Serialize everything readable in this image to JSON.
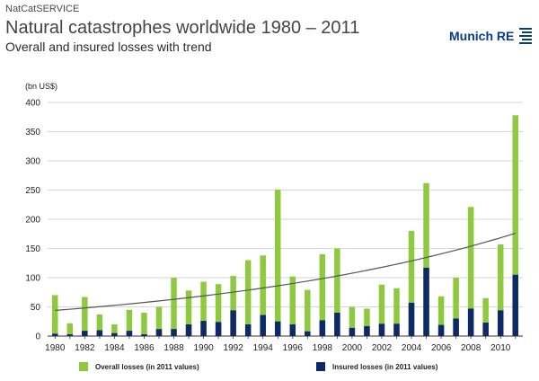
{
  "header": {
    "tag": "NatCatSERVICE",
    "title": "Natural catastrophes worldwide 1980 – 2011",
    "subtitle": "Overall and insured losses with trend",
    "logo_text": "Munich RE"
  },
  "colors": {
    "overall": "#8fc940",
    "insured": "#0d2a66",
    "trend": "#555555",
    "grid": "#c8c8c8",
    "brand": "#0b3b8c"
  },
  "chart_data": {
    "type": "bar",
    "title": "Natural catastrophes worldwide 1980 – 2011",
    "subtitle": "Overall and insured losses with trend",
    "ylabel": "(bn US$)",
    "xlabel": "",
    "ylim": [
      0,
      400
    ],
    "yticks": [
      0,
      50,
      100,
      150,
      200,
      250,
      300,
      350,
      400
    ],
    "grid": true,
    "legend_position": "bottom",
    "categories": [
      1980,
      1981,
      1982,
      1983,
      1984,
      1985,
      1986,
      1987,
      1988,
      1989,
      1990,
      1991,
      1992,
      1993,
      1994,
      1995,
      1996,
      1997,
      1998,
      1999,
      2000,
      2001,
      2002,
      2003,
      2004,
      2005,
      2006,
      2007,
      2008,
      2009,
      2010,
      2011
    ],
    "xtick_labels": [
      "1980",
      "1982",
      "1984",
      "1986",
      "1988",
      "1990",
      "1992",
      "1994",
      "1996",
      "1998",
      "2000",
      "2002",
      "2004",
      "2006",
      "2008",
      "2010"
    ],
    "series": [
      {
        "name": "Overall losses (in 2011 values)",
        "values": [
          70,
          22,
          67,
          37,
          20,
          45,
          40,
          50,
          100,
          78,
          93,
          89,
          103,
          130,
          138,
          251,
          102,
          79,
          140,
          150,
          50,
          47,
          88,
          82,
          180,
          262,
          68,
          100,
          221,
          65,
          157,
          378
        ]
      },
      {
        "name": "Insured losses (in 2011 values)",
        "values": [
          4,
          3,
          9,
          10,
          5,
          9,
          3,
          12,
          12,
          20,
          26,
          24,
          44,
          20,
          36,
          25,
          20,
          8,
          27,
          40,
          14,
          17,
          21,
          21,
          57,
          117,
          19,
          30,
          47,
          23,
          44,
          105
        ]
      }
    ],
    "trend": {
      "name": "Trend",
      "start_year": 1980,
      "start_value": 44,
      "end_year": 2011,
      "end_value": 176
    }
  }
}
